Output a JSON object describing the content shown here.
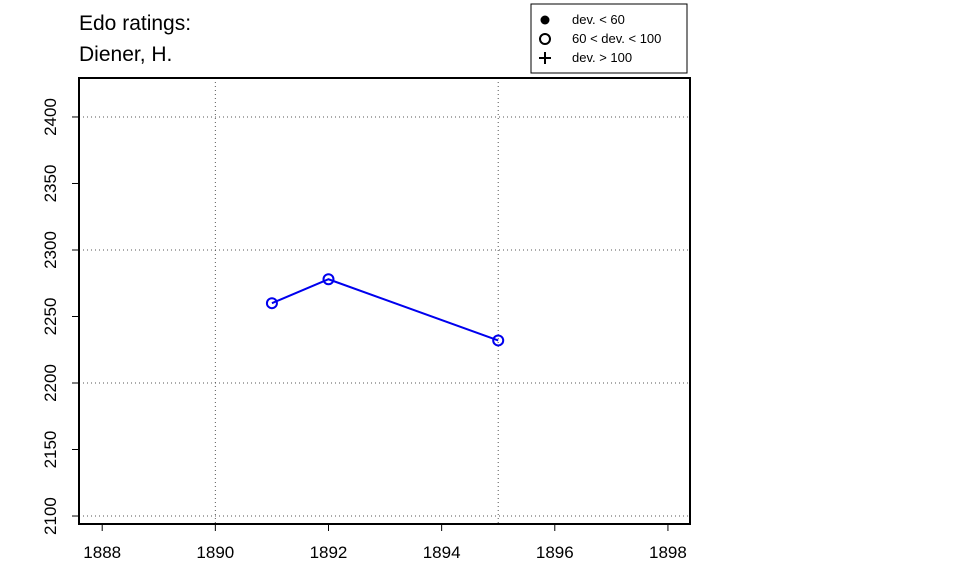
{
  "chart_data": {
    "type": "line",
    "title": [
      "Edo ratings:",
      "Diener, H."
    ],
    "x": [
      1891,
      1892,
      1895
    ],
    "series": [
      {
        "name": "Diener, H.",
        "color": "#0000ee",
        "marker": "open-circle",
        "values": [
          2260,
          2278,
          2232
        ]
      }
    ],
    "xlim": [
      1887.59,
      1898.39
    ],
    "xticks": [
      1888,
      1890,
      1892,
      1894,
      1896,
      1898
    ],
    "ylim": [
      2094,
      2429.3
    ],
    "yticks": [
      2100,
      2150,
      2200,
      2250,
      2300,
      2350,
      2400
    ],
    "xgrid": [
      1890,
      1895
    ],
    "ygrid": [
      2100,
      2200,
      2300,
      2400
    ],
    "legend": {
      "position": "top",
      "entries": [
        {
          "label": "dev. < 60",
          "marker": "filled-circle"
        },
        {
          "label": "60 < dev. < 100",
          "marker": "open-circle"
        },
        {
          "label": "dev. > 100",
          "marker": "plus"
        }
      ]
    }
  }
}
